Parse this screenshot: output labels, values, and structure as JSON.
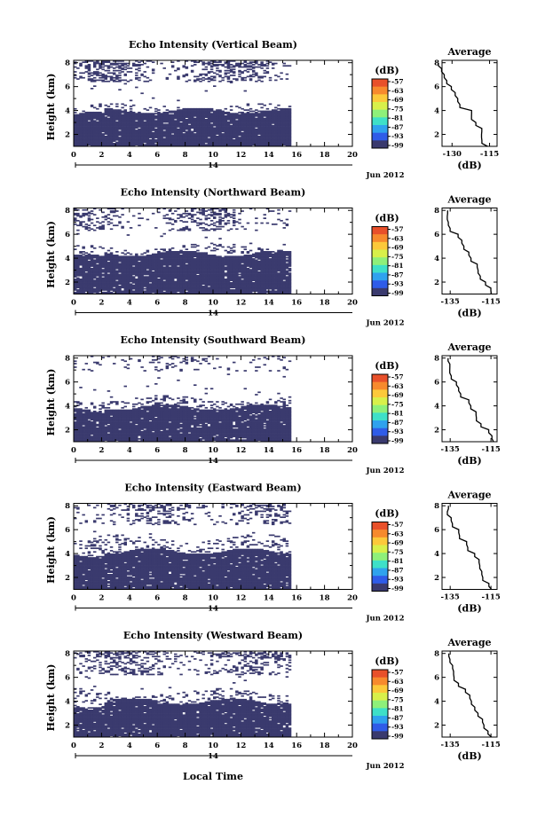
{
  "chart_data": {
    "type": "heatmap",
    "xlabel": "Local Time",
    "date_label": "Jun 2012",
    "day_label": "14",
    "x_ticks": [
      "0",
      "2",
      "4",
      "6",
      "8",
      "10",
      "12",
      "14",
      "16",
      "18",
      "20"
    ],
    "y_ticks": [
      "2",
      "4",
      "6",
      "8"
    ],
    "ylabel": "Height (km)",
    "xlim": [
      0,
      20
    ],
    "ylim": [
      1.0,
      8.2
    ],
    "data_end_time": 15.6,
    "fill_color": "#3a3a6e",
    "colorbar": {
      "label": "(dB)",
      "ticks": [
        "-57",
        "-63",
        "-69",
        "-75",
        "-81",
        "-87",
        "-93",
        "-99"
      ],
      "colors": [
        "#e8502a",
        "#f78a2d",
        "#fcc93a",
        "#d8f04a",
        "#8ef07a",
        "#3ee0c8",
        "#2fa2ee",
        "#2f5ce8",
        "#3a3a6e"
      ]
    },
    "average_panel": {
      "title": "Average",
      "xlabel": "(dB)",
      "x_ticks": [
        "-135",
        "-115"
      ],
      "y_ticks": [
        "2",
        "4",
        "6",
        "8"
      ]
    },
    "panels": [
      {
        "title": "Echo Intensity (Vertical Beam)",
        "avg_x_ticks": [
          "-130",
          "-115"
        ],
        "dense_top": 4.0,
        "fringe_top": 4.3,
        "upper_band": [
          6.4,
          8.2
        ],
        "upper_density": 0.55,
        "profile": [
          [
            1.0,
            -115
          ],
          [
            1.5,
            -117
          ],
          [
            2.0,
            -118
          ],
          [
            2.5,
            -119
          ],
          [
            3.0,
            -121
          ],
          [
            3.5,
            -122
          ],
          [
            4.0,
            -123
          ],
          [
            4.5,
            -126
          ],
          [
            5.0,
            -128
          ],
          [
            5.5,
            -130
          ],
          [
            6.0,
            -131
          ],
          [
            6.5,
            -133
          ],
          [
            7.0,
            -134
          ],
          [
            7.5,
            -135
          ],
          [
            8.0,
            -135
          ]
        ]
      },
      {
        "title": "Echo Intensity (Northward Beam)",
        "avg_x_ticks": [
          "-135",
          "-115"
        ],
        "dense_top": 4.4,
        "fringe_top": 5.0,
        "upper_band": [
          6.3,
          8.2
        ],
        "upper_density": 0.45,
        "profile": [
          [
            1.0,
            -114
          ],
          [
            1.5,
            -116
          ],
          [
            2.0,
            -118
          ],
          [
            2.5,
            -119
          ],
          [
            3.0,
            -121
          ],
          [
            3.5,
            -122
          ],
          [
            4.0,
            -124
          ],
          [
            4.5,
            -126
          ],
          [
            5.0,
            -128
          ],
          [
            5.5,
            -130
          ],
          [
            6.0,
            -132
          ],
          [
            6.5,
            -134
          ],
          [
            7.0,
            -135
          ],
          [
            7.5,
            -136
          ],
          [
            8.0,
            -136
          ]
        ]
      },
      {
        "title": "Echo Intensity (Southward Beam)",
        "avg_x_ticks": [
          "-135",
          "-115"
        ],
        "dense_top": 3.9,
        "fringe_top": 4.6,
        "upper_band": [
          6.9,
          8.2
        ],
        "upper_density": 0.2,
        "profile": [
          [
            1.0,
            -113
          ],
          [
            1.5,
            -115
          ],
          [
            2.0,
            -117
          ],
          [
            2.5,
            -119
          ],
          [
            3.0,
            -121
          ],
          [
            3.5,
            -123
          ],
          [
            4.0,
            -125
          ],
          [
            4.5,
            -127
          ],
          [
            5.0,
            -129
          ],
          [
            5.5,
            -131
          ],
          [
            6.0,
            -133
          ],
          [
            6.5,
            -134
          ],
          [
            7.0,
            -135
          ],
          [
            7.5,
            -136
          ],
          [
            8.0,
            -136
          ]
        ]
      },
      {
        "title": "Echo Intensity (Eastward Beam)",
        "avg_x_ticks": [
          "-135",
          "-115"
        ],
        "dense_top": 4.2,
        "fringe_top": 5.3,
        "upper_band": [
          6.4,
          8.2
        ],
        "upper_density": 0.45,
        "profile": [
          [
            1.0,
            -114
          ],
          [
            1.5,
            -116
          ],
          [
            2.0,
            -118
          ],
          [
            2.5,
            -119
          ],
          [
            3.0,
            -121
          ],
          [
            3.5,
            -122
          ],
          [
            4.0,
            -124
          ],
          [
            4.5,
            -126
          ],
          [
            5.0,
            -128
          ],
          [
            5.5,
            -130
          ],
          [
            6.0,
            -132
          ],
          [
            6.5,
            -134
          ],
          [
            7.0,
            -135
          ],
          [
            7.5,
            -136
          ],
          [
            8.0,
            -136
          ]
        ]
      },
      {
        "title": "Echo Intensity (Westward Beam)",
        "avg_x_ticks": [
          "-135",
          "-115"
        ],
        "dense_top": 4.0,
        "fringe_top": 4.8,
        "upper_band": [
          6.2,
          8.2
        ],
        "upper_density": 0.5,
        "profile": [
          [
            1.0,
            -114
          ],
          [
            1.5,
            -116
          ],
          [
            2.0,
            -118
          ],
          [
            2.5,
            -119
          ],
          [
            3.0,
            -121
          ],
          [
            3.5,
            -122
          ],
          [
            4.0,
            -124
          ],
          [
            4.5,
            -126
          ],
          [
            5.0,
            -128
          ],
          [
            5.5,
            -130
          ],
          [
            6.0,
            -132
          ],
          [
            6.5,
            -134
          ],
          [
            7.0,
            -135
          ],
          [
            7.5,
            -136
          ],
          [
            8.0,
            -136
          ]
        ]
      }
    ]
  }
}
